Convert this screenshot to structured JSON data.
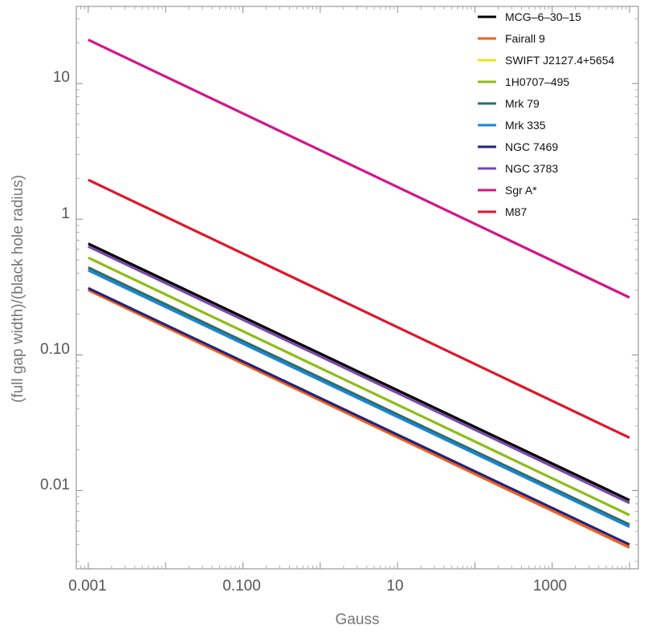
{
  "chart_data": {
    "type": "line",
    "xscale": "log",
    "yscale": "log",
    "xlabel": "Gauss",
    "ylabel": "(full gap width)/(black hole radius)",
    "xlim": [
      0.0007,
      13000
    ],
    "ylim": [
      0.00265,
      37
    ],
    "x_tick_labels": [
      "0.001",
      "0.100",
      "10",
      "1000"
    ],
    "y_tick_labels": [
      "0.01",
      "0.10",
      "1",
      "10"
    ],
    "x": [
      0.001,
      10000
    ],
    "series": [
      {
        "name": "MCG–6–30–15",
        "color": "#000000",
        "values": [
          0.66,
          0.0085
        ]
      },
      {
        "name": "Fairall 9",
        "color": "#f0601c",
        "values": [
          0.3,
          0.0038
        ]
      },
      {
        "name": "SWIFT J2127.4+5654",
        "color": "#f0e020",
        "values": [
          0.44,
          0.0056
        ]
      },
      {
        "name": "1H0707–495",
        "color": "#8ebd16",
        "values": [
          0.52,
          0.0066
        ]
      },
      {
        "name": "Mrk 79",
        "color": "#2e6d6a",
        "values": [
          0.44,
          0.0056
        ]
      },
      {
        "name": "Mrk 335",
        "color": "#1a86d8",
        "values": [
          0.42,
          0.0054
        ]
      },
      {
        "name": "NGC 7469",
        "color": "#24247a",
        "values": [
          0.31,
          0.004
        ]
      },
      {
        "name": "NGC 3783",
        "color": "#7a4aa8",
        "values": [
          0.63,
          0.0081
        ]
      },
      {
        "name": "Sgr A*",
        "color": "#d4148a",
        "values": [
          21.0,
          0.265
        ]
      },
      {
        "name": "M87",
        "color": "#e0162a",
        "values": [
          1.95,
          0.0245
        ]
      }
    ],
    "legend_position": "top-right"
  }
}
